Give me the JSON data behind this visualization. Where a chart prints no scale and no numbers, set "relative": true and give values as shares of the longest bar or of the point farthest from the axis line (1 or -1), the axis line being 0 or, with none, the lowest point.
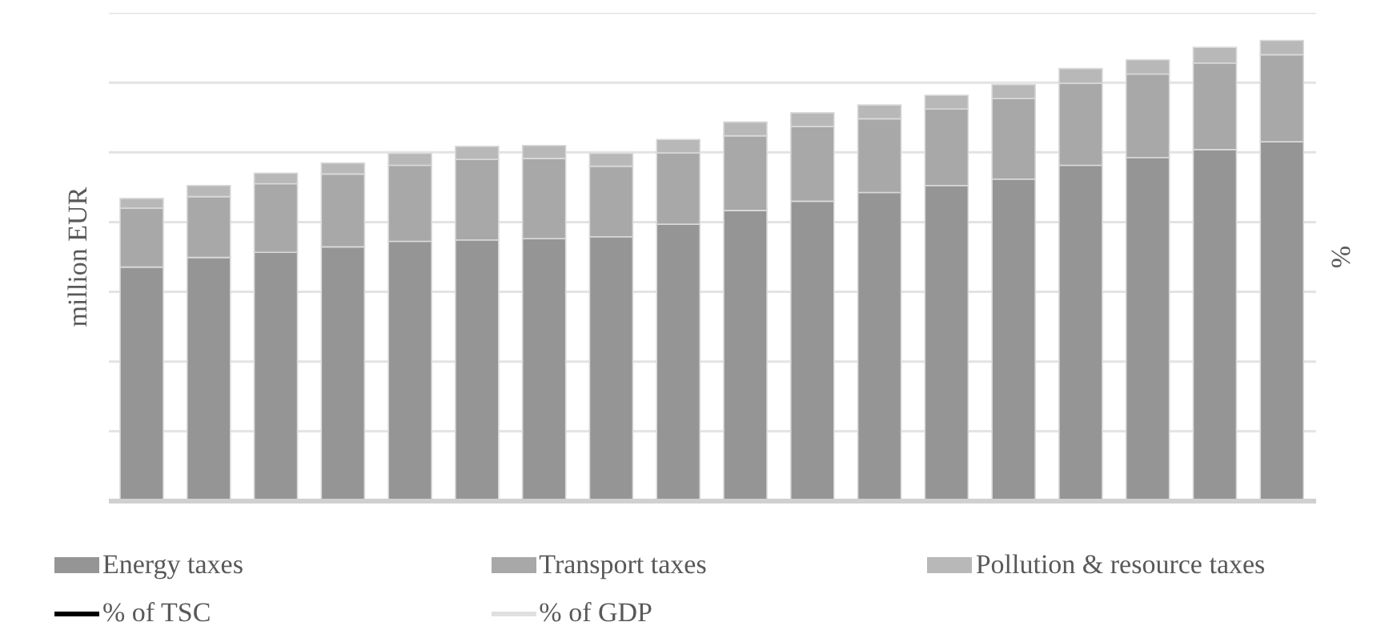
{
  "chart_data": {
    "type": "bar",
    "stacked": true,
    "relative": true,
    "ylabel": "million EUR",
    "y2label": "%",
    "grid": "y",
    "legend": "bottom",
    "categories": [
      null,
      null,
      null,
      null,
      null,
      null,
      null,
      null,
      null,
      null,
      null,
      null,
      null,
      null,
      null,
      null,
      null,
      null
    ],
    "series": [
      {
        "name": "Energy taxes",
        "color": "#959595",
        "values": [
          0.508,
          0.529,
          0.54,
          0.552,
          0.564,
          0.567,
          0.57,
          0.574,
          0.601,
          0.631,
          0.651,
          0.67,
          0.685,
          0.699,
          0.729,
          0.746,
          0.763,
          0.78
        ]
      },
      {
        "name": "Transport taxes",
        "color": "#a8a8a8",
        "values": [
          0.128,
          0.132,
          0.149,
          0.158,
          0.165,
          0.175,
          0.174,
          0.153,
          0.155,
          0.162,
          0.162,
          0.16,
          0.166,
          0.175,
          0.178,
          0.181,
          0.188,
          0.189
        ]
      },
      {
        "name": "Pollution & resource taxes",
        "color": "#b8b8b8",
        "values": [
          0.021,
          0.024,
          0.023,
          0.024,
          0.026,
          0.028,
          0.028,
          0.028,
          0.029,
          0.03,
          0.03,
          0.03,
          0.03,
          0.03,
          0.032,
          0.031,
          0.034,
          0.031
        ]
      }
    ],
    "annotations": [
      "% of TSC",
      "% of GDP"
    ]
  }
}
